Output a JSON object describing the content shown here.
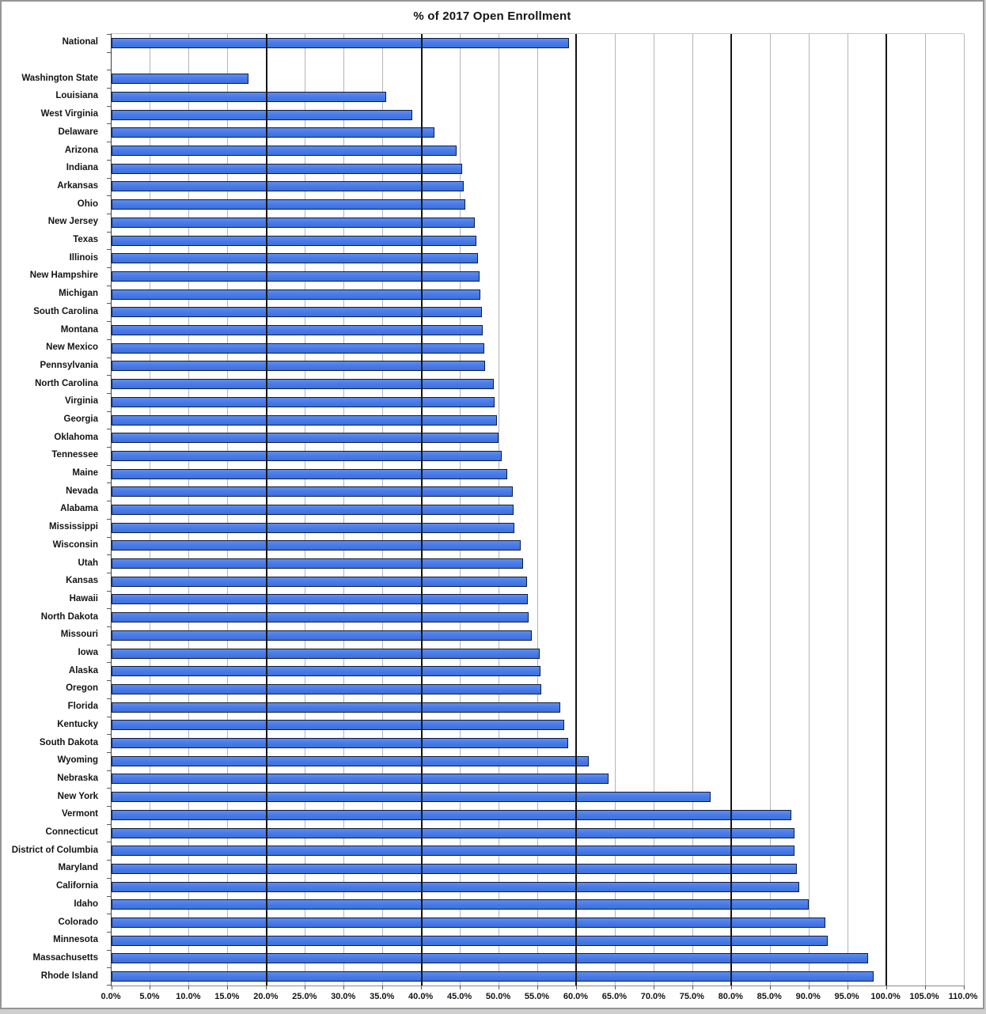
{
  "chart_data": {
    "type": "bar",
    "orientation": "horizontal",
    "title": "% of 2017 Open Enrollment",
    "xlabel": "",
    "ylabel": "",
    "xlim": [
      0,
      110
    ],
    "grid": "vertical minor every 5%, major black lines every 20%",
    "legend": "none",
    "major_gridlines": [
      20,
      40,
      60,
      80,
      100
    ],
    "x_axis": {
      "ticks": [
        {
          "value": 0,
          "label": "0.0%"
        },
        {
          "value": 5,
          "label": "5.0%"
        },
        {
          "value": 10,
          "label": "10.0%"
        },
        {
          "value": 15,
          "label": "15.0%"
        },
        {
          "value": 20,
          "label": "20.0%"
        },
        {
          "value": 25,
          "label": "25.0%"
        },
        {
          "value": 30,
          "label": "30.0%"
        },
        {
          "value": 35,
          "label": "35.0%"
        },
        {
          "value": 40,
          "label": "40.0%"
        },
        {
          "value": 45,
          "label": "45.0%"
        },
        {
          "value": 50,
          "label": "50.0%"
        },
        {
          "value": 55,
          "label": "55.0%"
        },
        {
          "value": 60,
          "label": "60.0%"
        },
        {
          "value": 65,
          "label": "65.0%"
        },
        {
          "value": 70,
          "label": "70.0%"
        },
        {
          "value": 75,
          "label": "75.0%"
        },
        {
          "value": 80,
          "label": "80.0%"
        },
        {
          "value": 85,
          "label": "85.0%"
        },
        {
          "value": 90,
          "label": "90.0%"
        },
        {
          "value": 95,
          "label": "95.0%"
        },
        {
          "value": 100,
          "label": "100.0%"
        },
        {
          "value": 105,
          "label": "105.0%"
        },
        {
          "value": 110,
          "label": "110.0%"
        }
      ]
    },
    "rows": [
      {
        "label": "National",
        "value": 59.0
      },
      {
        "label": "",
        "value": null
      },
      {
        "label": "Washington State",
        "value": 17.7
      },
      {
        "label": "Louisiana",
        "value": 35.4
      },
      {
        "label": "West Virginia",
        "value": 38.8
      },
      {
        "label": "Delaware",
        "value": 41.7
      },
      {
        "label": "Arizona",
        "value": 44.5
      },
      {
        "label": "Indiana",
        "value": 45.2
      },
      {
        "label": "Arkansas",
        "value": 45.5
      },
      {
        "label": "Ohio",
        "value": 45.7
      },
      {
        "label": "New Jersey",
        "value": 46.9
      },
      {
        "label": "Texas",
        "value": 47.1
      },
      {
        "label": "Illinois",
        "value": 47.3
      },
      {
        "label": "New Hampshire",
        "value": 47.5
      },
      {
        "label": "Michigan",
        "value": 47.6
      },
      {
        "label": "South Carolina",
        "value": 47.8
      },
      {
        "label": "Montana",
        "value": 47.9
      },
      {
        "label": "New Mexico",
        "value": 48.1
      },
      {
        "label": "Pennsylvania",
        "value": 48.2
      },
      {
        "label": "North Carolina",
        "value": 49.3
      },
      {
        "label": "Virginia",
        "value": 49.4
      },
      {
        "label": "Georgia",
        "value": 49.7
      },
      {
        "label": "Oklahoma",
        "value": 49.9
      },
      {
        "label": "Tennessee",
        "value": 50.4
      },
      {
        "label": "Maine",
        "value": 51.1
      },
      {
        "label": "Nevada",
        "value": 51.8
      },
      {
        "label": "Alabama",
        "value": 51.9
      },
      {
        "label": "Mississippi",
        "value": 52.0
      },
      {
        "label": "Wisconsin",
        "value": 52.8
      },
      {
        "label": "Utah",
        "value": 53.1
      },
      {
        "label": "Kansas",
        "value": 53.6
      },
      {
        "label": "Hawaii",
        "value": 53.7
      },
      {
        "label": "North Dakota",
        "value": 53.8
      },
      {
        "label": "Missouri",
        "value": 54.2
      },
      {
        "label": "Iowa",
        "value": 55.3
      },
      {
        "label": "Alaska",
        "value": 55.4
      },
      {
        "label": "Oregon",
        "value": 55.5
      },
      {
        "label": "Florida",
        "value": 57.9
      },
      {
        "label": "Kentucky",
        "value": 58.4
      },
      {
        "label": "South Dakota",
        "value": 58.9
      },
      {
        "label": "Wyoming",
        "value": 61.6
      },
      {
        "label": "Nebraska",
        "value": 64.1
      },
      {
        "label": "New York",
        "value": 77.3
      },
      {
        "label": "Vermont",
        "value": 87.7
      },
      {
        "label": "Connecticut",
        "value": 88.1
      },
      {
        "label": "District of Columbia",
        "value": 88.1
      },
      {
        "label": "Maryland",
        "value": 88.5
      },
      {
        "label": "California",
        "value": 88.8
      },
      {
        "label": "Idaho",
        "value": 90.0
      },
      {
        "label": "Colorado",
        "value": 92.1
      },
      {
        "label": "Minnesota",
        "value": 92.4
      },
      {
        "label": "Massachusetts",
        "value": 97.6
      },
      {
        "label": "Rhode Island",
        "value": 98.4
      }
    ],
    "colors": {
      "bar_fill": "#4a7ce8",
      "bar_border": "#0e1c3c",
      "minor_gridline": "#b5b5b5",
      "major_gridline": "#161616",
      "text": "#141414",
      "background": "#ffffff"
    }
  }
}
